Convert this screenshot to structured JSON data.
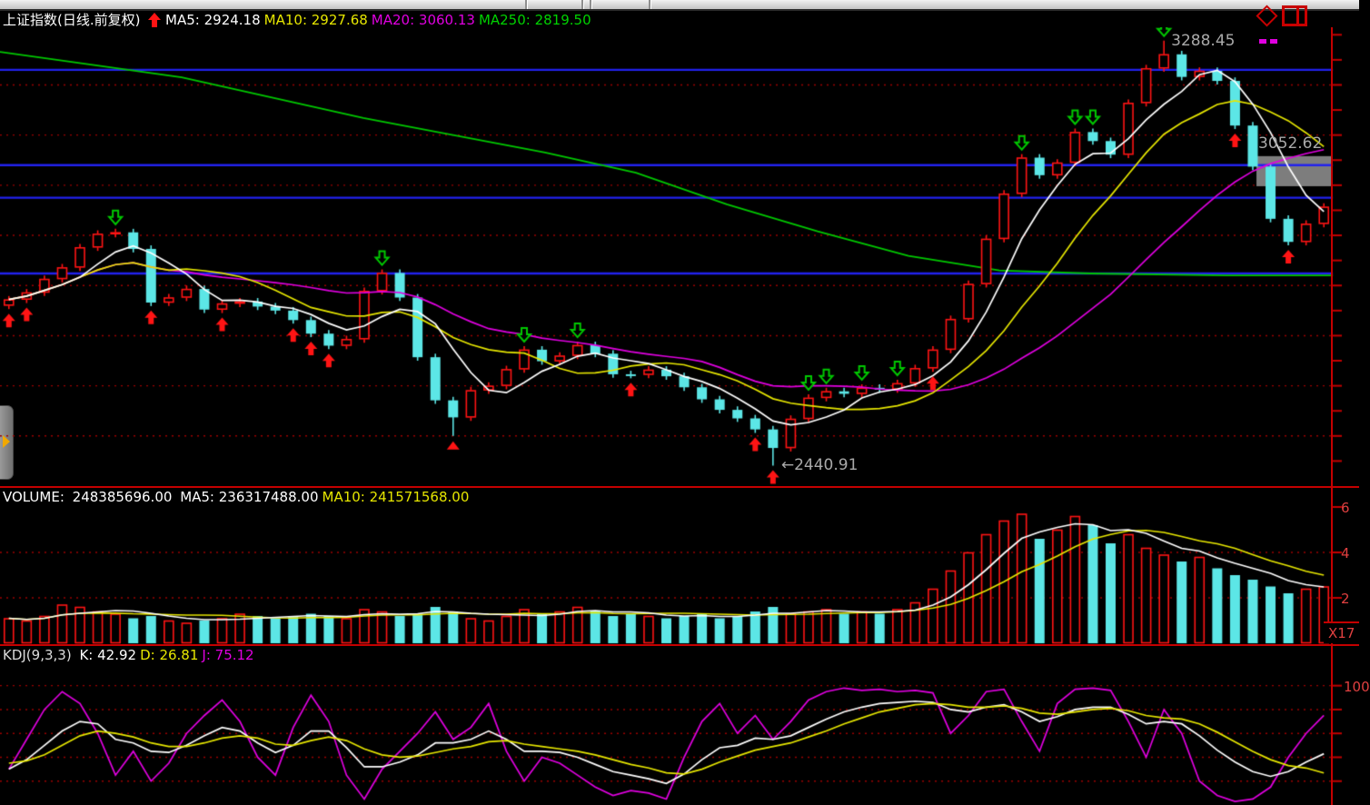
{
  "main_panel": {
    "title": "上证指数(日线.前复权)",
    "ma_legend": [
      {
        "label": "MA5:",
        "value": "2924.18",
        "color": "#ffffff"
      },
      {
        "label": "MA10:",
        "value": "2927.68",
        "color": "#e6e600"
      },
      {
        "label": "MA20:",
        "value": "3060.13",
        "color": "#e000e0"
      },
      {
        "label": "MA250:",
        "value": "2819.50",
        "color": "#00d200"
      }
    ],
    "annotations": {
      "high": "3288.45",
      "low": "←2440.91",
      "current": "3052.62"
    }
  },
  "volume_panel": {
    "title": "VOLUME:",
    "value": "248385696.00",
    "ma_legend": [
      {
        "label": "MA5:",
        "value": "236317488.00",
        "color": "#ffffff"
      },
      {
        "label": "MA10:",
        "value": "241571568.00",
        "color": "#e6e600"
      }
    ],
    "axis_labels": [
      {
        "text": "6",
        "y": 550
      },
      {
        "text": "4",
        "y": 600
      },
      {
        "text": "2",
        "y": 650
      }
    ],
    "scale_label": "X17"
  },
  "kdj_panel": {
    "title": "KDJ(9,3,3)",
    "legend": [
      {
        "label": "K:",
        "value": "42.92",
        "color": "#ffffff"
      },
      {
        "label": "D:",
        "value": "26.81",
        "color": "#e6e600"
      },
      {
        "label": "J:",
        "value": "75.12",
        "color": "#e000e0"
      }
    ],
    "axis_top_label": "100"
  },
  "chart_data": [
    {
      "type": "candlestick",
      "panel": "main",
      "title": "上证指数(日线.前复权)",
      "ylim": [
        2400,
        3315
      ],
      "gridline_prices": [
        3200,
        3100,
        3000,
        2900,
        2800,
        2700,
        2600,
        2500
      ],
      "blue_levels": [
        3230,
        3040,
        2975,
        2824
      ],
      "closes": [
        2772,
        2786,
        2813,
        2836,
        2876,
        2903,
        2906,
        2873,
        2766,
        2776,
        2793,
        2752,
        2764,
        2768,
        2758,
        2750,
        2731,
        2704,
        2680,
        2693,
        2789,
        2825,
        2776,
        2657,
        2571,
        2537,
        2591,
        2600,
        2633,
        2672,
        2649,
        2660,
        2681,
        2664,
        2623,
        2622,
        2632,
        2619,
        2597,
        2573,
        2552,
        2535,
        2513,
        2476,
        2534,
        2576,
        2589,
        2584,
        2596,
        2593,
        2605,
        2635,
        2672,
        2733,
        2803,
        2893,
        2983,
        3055,
        3020,
        3045,
        3106,
        3088,
        3061,
        3164,
        3233,
        3261,
        3216,
        3228,
        3208,
        3119,
        3037,
        2933,
        2887,
        2923,
        2957
      ],
      "wick_high_overrides": {
        "65": 3288.45
      },
      "wick_low_overrides": {
        "25": 2500,
        "43": 2440.91
      },
      "high_point": {
        "index": 65,
        "price": 3288.45
      },
      "low_point": {
        "index": 43,
        "price": 2440.91
      },
      "current_price": 3052.62,
      "ma_values_legend": {
        "MA5": 2924.18,
        "MA10": 2927.68,
        "MA20": 3060.13,
        "MA250": 2819.5
      },
      "ma250_keypoints": [
        [
          0,
          3266
        ],
        [
          200,
          3215
        ],
        [
          400,
          3134
        ],
        [
          600,
          3065
        ],
        [
          700,
          3025
        ],
        [
          800,
          2962
        ],
        [
          900,
          2908
        ],
        [
          1000,
          2859
        ],
        [
          1100,
          2830
        ],
        [
          1200,
          2824
        ],
        [
          1350,
          2820
        ],
        [
          1467,
          2820
        ]
      ],
      "buy_signal_indices": [
        0,
        1,
        8,
        12,
        16,
        17,
        18,
        35,
        42,
        43,
        52,
        69,
        72
      ],
      "buy_triangle_indices": [
        25
      ],
      "sell_signal_indices": [
        6,
        21,
        29,
        32,
        45,
        46,
        48,
        50,
        57,
        60,
        61,
        65
      ],
      "highlight_box": {
        "x_from": 1383,
        "price_top": 3058,
        "price_bottom": 2998
      },
      "colors": {
        "up": "#ff1414",
        "down": "#5ce6e6",
        "ma5": "#ffffff",
        "ma10": "#e6e600",
        "ma20": "#e000e0",
        "ma250": "#00c800",
        "grid": "#9b0000",
        "level": "#2222ee",
        "buy": "#ff1414",
        "sell": "#00c800",
        "box": "#7d7d7d"
      }
    },
    {
      "type": "bar",
      "panel": "volume",
      "title": "VOLUME",
      "unit": "x1e8",
      "current_value": 248385696.0,
      "ma5_value": 236317488.0,
      "ma10_value": 241571568.0,
      "ylim": [
        0,
        6.88
      ],
      "gridline_values": [
        4,
        2
      ],
      "axis_tick_values": [
        6,
        4,
        2
      ],
      "values": [
        1.1,
        1.0,
        1.2,
        1.7,
        1.6,
        1.4,
        1.3,
        1.1,
        1.2,
        1.0,
        0.9,
        1.0,
        1.1,
        1.3,
        1.2,
        1.1,
        1.2,
        1.3,
        1.2,
        1.1,
        1.5,
        1.4,
        1.2,
        1.3,
        1.6,
        1.4,
        1.1,
        1.0,
        1.2,
        1.5,
        1.3,
        1.4,
        1.6,
        1.4,
        1.2,
        1.3,
        1.2,
        1.1,
        1.2,
        1.3,
        1.1,
        1.2,
        1.4,
        1.6,
        1.3,
        1.4,
        1.5,
        1.3,
        1.4,
        1.3,
        1.5,
        1.8,
        2.4,
        3.2,
        4.0,
        4.8,
        5.4,
        5.7,
        4.6,
        5.0,
        5.6,
        5.2,
        4.4,
        4.8,
        4.2,
        3.9,
        3.6,
        3.8,
        3.3,
        3.0,
        2.8,
        2.5,
        2.2,
        2.4,
        2.5
      ],
      "colors": {
        "up": "#ff1414",
        "down": "#5ce6e6",
        "ma5": "#ffffff",
        "ma10": "#e6e600",
        "grid": "#9b0000"
      }
    },
    {
      "type": "line",
      "panel": "kdj",
      "title": "KDJ(9,3,3)",
      "ylim": [
        0,
        134
      ],
      "gridline_values": [
        100,
        80,
        60,
        40,
        20
      ],
      "series": [
        {
          "name": "K",
          "color": "#ffffff",
          "values": [
            30,
            38,
            50,
            62,
            70,
            68,
            55,
            52,
            45,
            44,
            50,
            58,
            65,
            62,
            52,
            44,
            50,
            62,
            62,
            48,
            32,
            32,
            36,
            42,
            52,
            52,
            55,
            62,
            55,
            45,
            45,
            44,
            40,
            34,
            28,
            25,
            22,
            18,
            26,
            38,
            48,
            50,
            56,
            55,
            58,
            65,
            72,
            78,
            82,
            85,
            86,
            87,
            86,
            80,
            78,
            82,
            84,
            78,
            70,
            74,
            80,
            82,
            82,
            76,
            68,
            70,
            68,
            58,
            46,
            36,
            28,
            24,
            28,
            36,
            42.92
          ]
        },
        {
          "name": "D",
          "color": "#e6e600",
          "values": [
            35,
            37,
            42,
            50,
            58,
            62,
            60,
            57,
            52,
            49,
            49,
            52,
            56,
            58,
            56,
            51,
            50,
            54,
            57,
            54,
            47,
            42,
            40,
            41,
            44,
            47,
            49,
            53,
            54,
            51,
            49,
            47,
            45,
            42,
            38,
            34,
            31,
            27,
            26,
            30,
            36,
            41,
            46,
            49,
            52,
            57,
            62,
            68,
            73,
            78,
            81,
            84,
            85,
            84,
            82,
            82,
            83,
            81,
            77,
            76,
            78,
            80,
            81,
            79,
            75,
            73,
            72,
            68,
            61,
            53,
            45,
            38,
            33,
            31,
            26.81
          ]
        },
        {
          "name": "J",
          "color": "#e000e0",
          "values": [
            30,
            55,
            80,
            95,
            85,
            60,
            25,
            45,
            20,
            35,
            60,
            75,
            88,
            70,
            40,
            25,
            65,
            92,
            70,
            25,
            5,
            30,
            45,
            60,
            78,
            55,
            65,
            85,
            45,
            20,
            40,
            35,
            25,
            15,
            8,
            12,
            10,
            5,
            40,
            70,
            85,
            60,
            75,
            55,
            70,
            88,
            95,
            98,
            96,
            97,
            95,
            96,
            94,
            60,
            75,
            95,
            97,
            70,
            45,
            85,
            97,
            98,
            96,
            70,
            40,
            80,
            60,
            20,
            8,
            3,
            5,
            15,
            40,
            60,
            75.12
          ]
        }
      ]
    }
  ]
}
